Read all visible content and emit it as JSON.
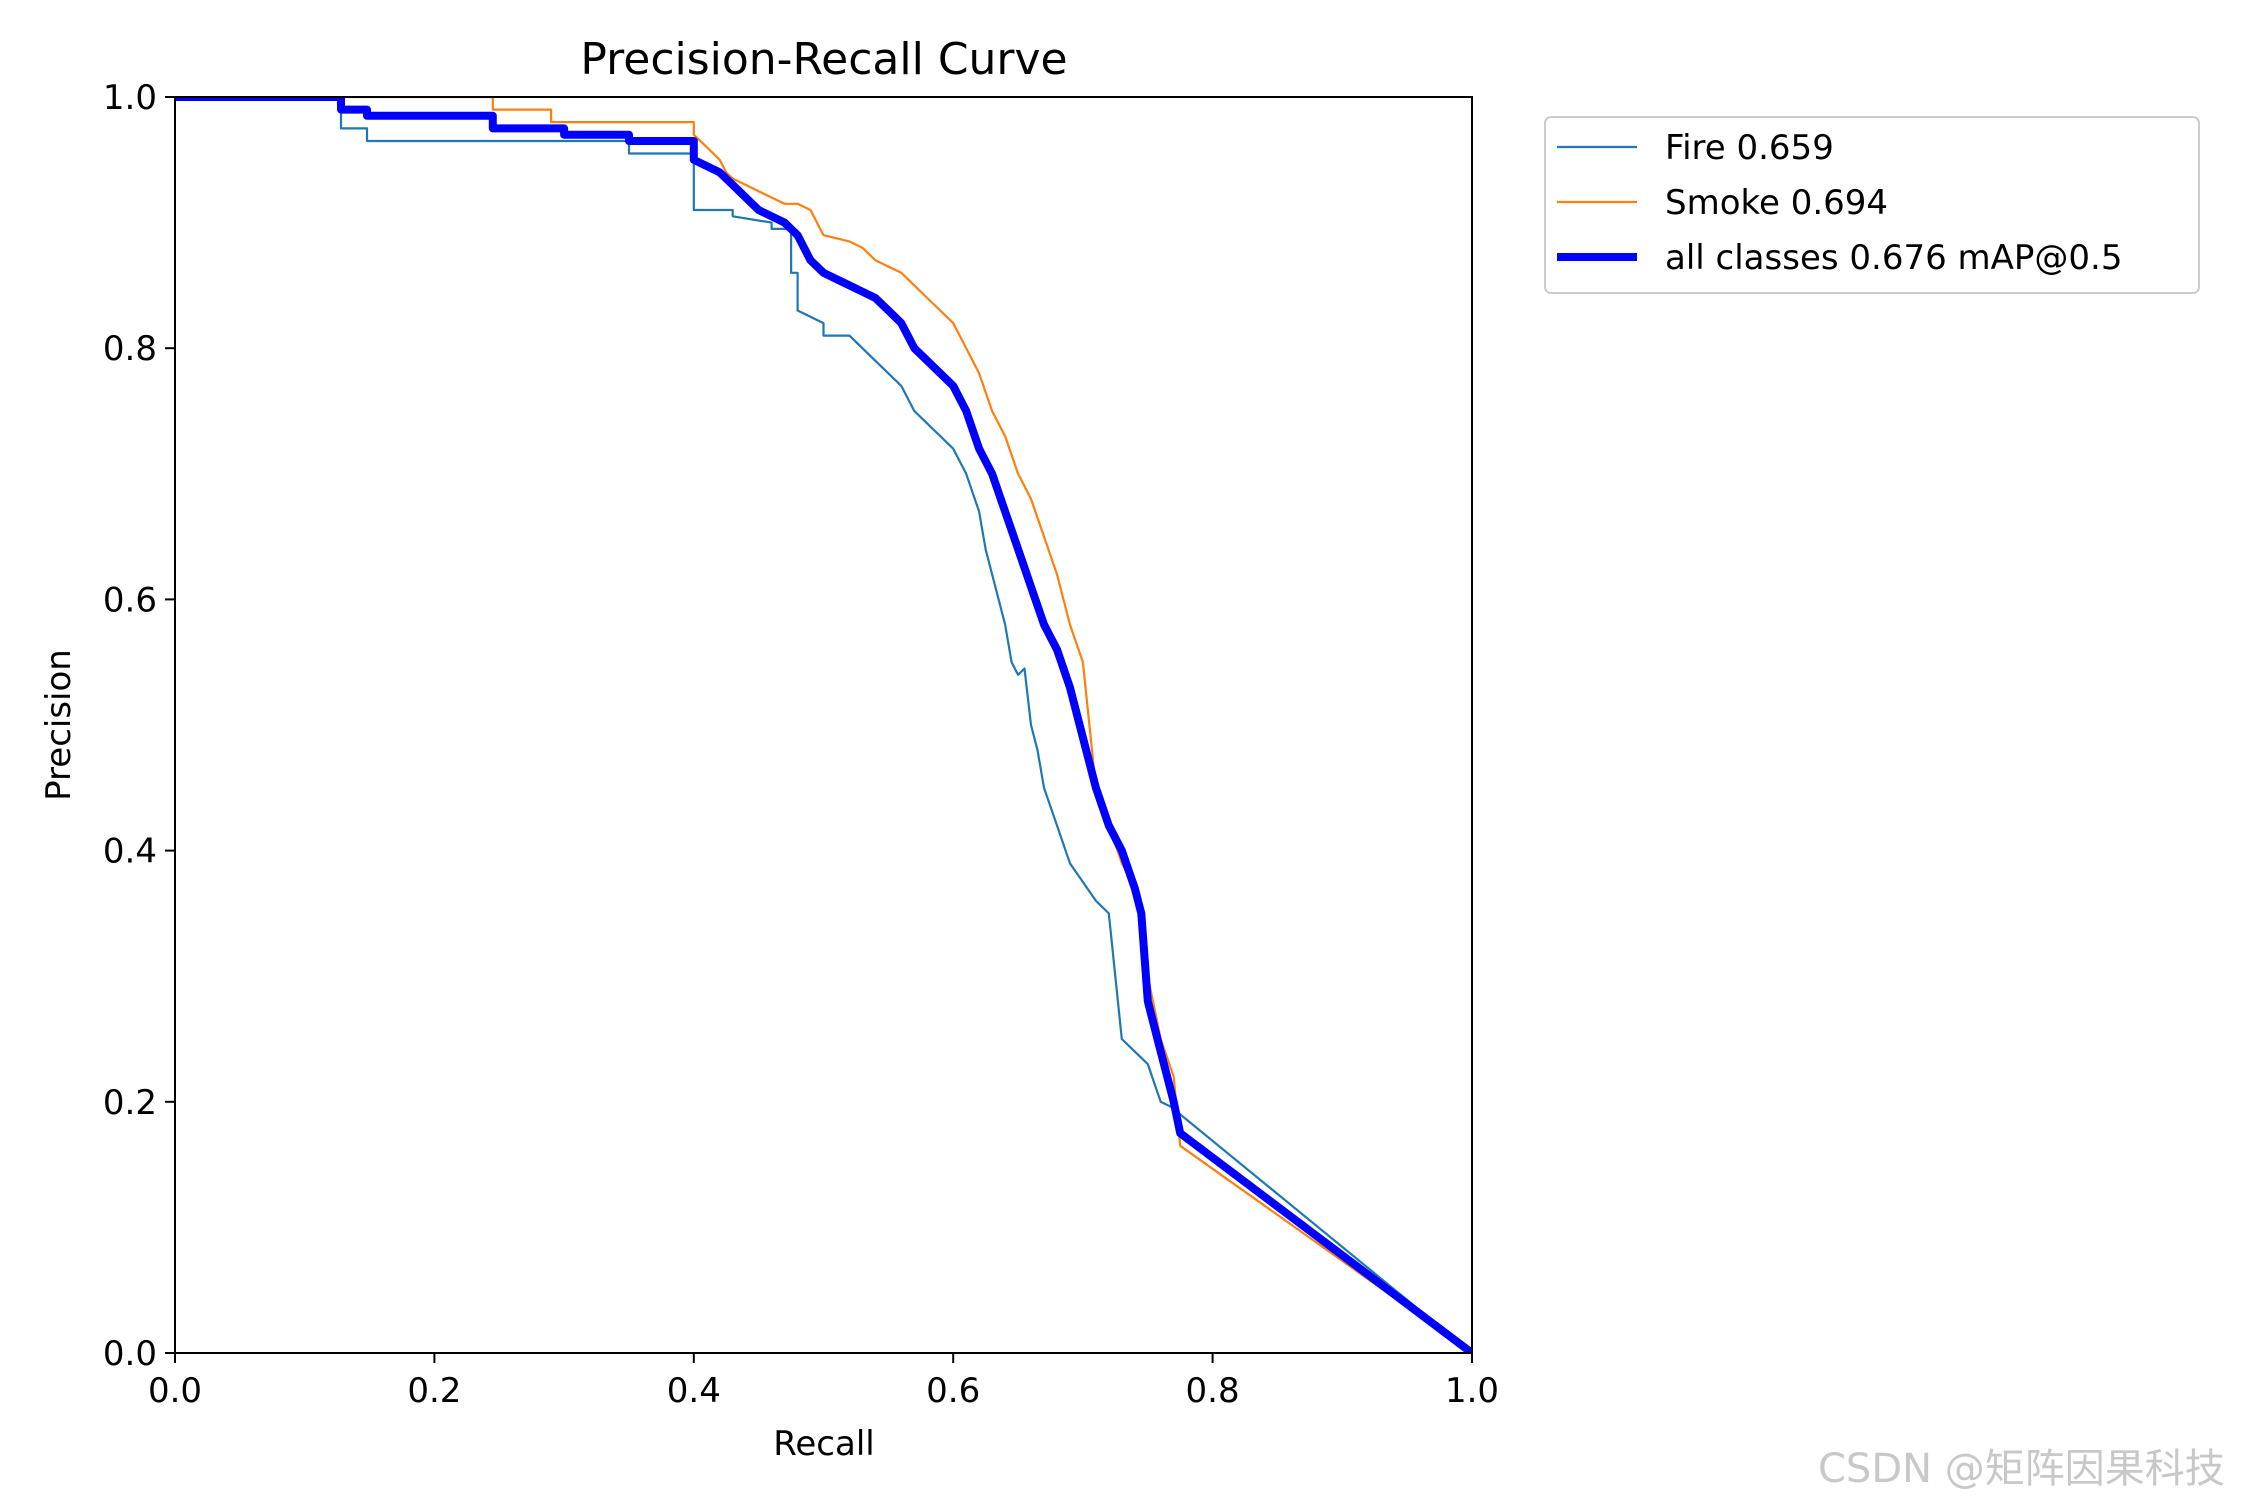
{
  "watermark": "CSDN @矩阵因果科技",
  "chart_data": {
    "type": "line",
    "title": "Precision-Recall Curve",
    "xlabel": "Recall",
    "ylabel": "Precision",
    "xlim": [
      0.0,
      1.0
    ],
    "ylim": [
      0.0,
      1.0
    ],
    "xticks": [
      "0.0",
      "0.2",
      "0.4",
      "0.6",
      "0.8",
      "1.0"
    ],
    "yticks": [
      "0.0",
      "0.2",
      "0.4",
      "0.6",
      "0.8",
      "1.0"
    ],
    "grid": false,
    "legend_position": "outside-top-right",
    "series": [
      {
        "name": "Fire 0.659",
        "color": "#1f77b4",
        "width": "thin",
        "x": [
          0.0,
          0.128,
          0.128,
          0.148,
          0.148,
          0.35,
          0.35,
          0.4,
          0.4,
          0.43,
          0.43,
          0.46,
          0.46,
          0.475,
          0.475,
          0.48,
          0.48,
          0.5,
          0.5,
          0.52,
          0.53,
          0.54,
          0.56,
          0.57,
          0.58,
          0.6,
          0.61,
          0.62,
          0.625,
          0.635,
          0.64,
          0.645,
          0.65,
          0.655,
          0.66,
          0.665,
          0.67,
          0.68,
          0.69,
          0.7,
          0.71,
          0.72,
          0.73,
          0.74,
          0.75,
          0.76,
          0.77,
          0.775,
          1.0
        ],
        "y": [
          1.0,
          1.0,
          0.975,
          0.975,
          0.965,
          0.965,
          0.955,
          0.955,
          0.91,
          0.91,
          0.905,
          0.9,
          0.895,
          0.895,
          0.86,
          0.86,
          0.83,
          0.82,
          0.81,
          0.81,
          0.8,
          0.79,
          0.77,
          0.75,
          0.74,
          0.72,
          0.7,
          0.67,
          0.64,
          0.6,
          0.58,
          0.55,
          0.54,
          0.545,
          0.5,
          0.48,
          0.45,
          0.42,
          0.39,
          0.375,
          0.36,
          0.35,
          0.25,
          0.24,
          0.23,
          0.2,
          0.195,
          0.19,
          0.0
        ]
      },
      {
        "name": "Smoke 0.694",
        "color": "#ff7f0e",
        "width": "thin",
        "x": [
          0.0,
          0.245,
          0.245,
          0.29,
          0.29,
          0.4,
          0.4,
          0.41,
          0.42,
          0.425,
          0.43,
          0.44,
          0.45,
          0.46,
          0.47,
          0.48,
          0.49,
          0.5,
          0.52,
          0.53,
          0.54,
          0.56,
          0.57,
          0.58,
          0.59,
          0.6,
          0.61,
          0.62,
          0.63,
          0.64,
          0.65,
          0.66,
          0.67,
          0.68,
          0.69,
          0.7,
          0.705,
          0.71,
          0.715,
          0.72,
          0.73,
          0.74,
          0.75,
          0.76,
          0.77,
          0.775,
          1.0
        ],
        "y": [
          1.0,
          1.0,
          0.99,
          0.99,
          0.98,
          0.98,
          0.97,
          0.96,
          0.95,
          0.94,
          0.935,
          0.93,
          0.925,
          0.92,
          0.915,
          0.915,
          0.91,
          0.89,
          0.885,
          0.88,
          0.87,
          0.86,
          0.85,
          0.84,
          0.83,
          0.82,
          0.8,
          0.78,
          0.75,
          0.73,
          0.7,
          0.68,
          0.65,
          0.62,
          0.58,
          0.55,
          0.5,
          0.45,
          0.43,
          0.42,
          0.39,
          0.37,
          0.3,
          0.25,
          0.22,
          0.165,
          0.0
        ]
      },
      {
        "name": "all classes 0.676 mAP@0.5",
        "color": "#0000ff",
        "width": "thick",
        "x": [
          0.0,
          0.128,
          0.128,
          0.148,
          0.148,
          0.245,
          0.245,
          0.3,
          0.3,
          0.35,
          0.35,
          0.4,
          0.4,
          0.42,
          0.43,
          0.44,
          0.45,
          0.46,
          0.47,
          0.48,
          0.49,
          0.5,
          0.51,
          0.52,
          0.53,
          0.54,
          0.55,
          0.56,
          0.57,
          0.58,
          0.6,
          0.61,
          0.62,
          0.63,
          0.64,
          0.65,
          0.66,
          0.67,
          0.68,
          0.69,
          0.7,
          0.71,
          0.72,
          0.73,
          0.74,
          0.745,
          0.75,
          0.76,
          0.77,
          0.775,
          1.0
        ],
        "y": [
          1.0,
          1.0,
          0.99,
          0.99,
          0.985,
          0.985,
          0.975,
          0.975,
          0.97,
          0.97,
          0.965,
          0.965,
          0.95,
          0.94,
          0.93,
          0.92,
          0.91,
          0.905,
          0.9,
          0.89,
          0.87,
          0.86,
          0.855,
          0.85,
          0.845,
          0.84,
          0.83,
          0.82,
          0.8,
          0.79,
          0.77,
          0.75,
          0.72,
          0.7,
          0.67,
          0.64,
          0.61,
          0.58,
          0.56,
          0.53,
          0.49,
          0.45,
          0.42,
          0.4,
          0.37,
          0.35,
          0.28,
          0.24,
          0.2,
          0.175,
          0.0
        ]
      }
    ]
  }
}
